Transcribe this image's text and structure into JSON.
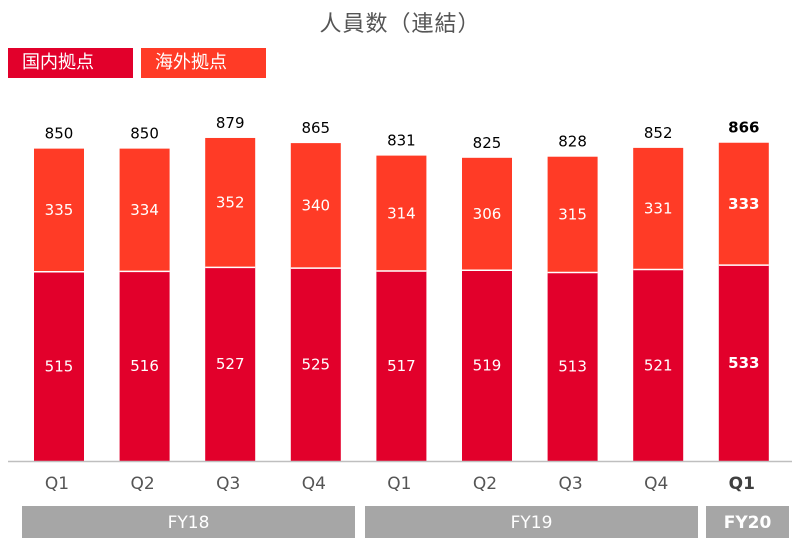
{
  "title": "人員数（連結）",
  "colors": {
    "domestic": "#e2002b",
    "overseas": "#ff3b26",
    "group_bar": "#a6a6a6",
    "axis": "#bfbfbf"
  },
  "chart_data": {
    "type": "bar",
    "stacked": true,
    "title": "人員数（連結）",
    "legend": [
      "国内拠点",
      "海外拠点"
    ],
    "legend_position": "top-left",
    "categories": [
      "Q1",
      "Q2",
      "Q3",
      "Q4",
      "Q1",
      "Q2",
      "Q3",
      "Q4",
      "Q1"
    ],
    "groups": [
      {
        "label": "FY18",
        "categories": [
          0,
          1,
          2,
          3
        ]
      },
      {
        "label": "FY19",
        "categories": [
          4,
          5,
          6,
          7
        ]
      },
      {
        "label": "FY20",
        "categories": [
          8
        ]
      }
    ],
    "series": [
      {
        "name": "国内拠点",
        "values": [
          515,
          516,
          527,
          525,
          517,
          519,
          513,
          521,
          533
        ]
      },
      {
        "name": "海外拠点",
        "values": [
          335,
          334,
          352,
          340,
          314,
          306,
          315,
          331,
          333
        ]
      }
    ],
    "totals": [
      850,
      850,
      879,
      865,
      831,
      825,
      828,
      852,
      866
    ],
    "highlight_index": 8,
    "ylim": [
      0,
      900
    ],
    "grid": false
  }
}
